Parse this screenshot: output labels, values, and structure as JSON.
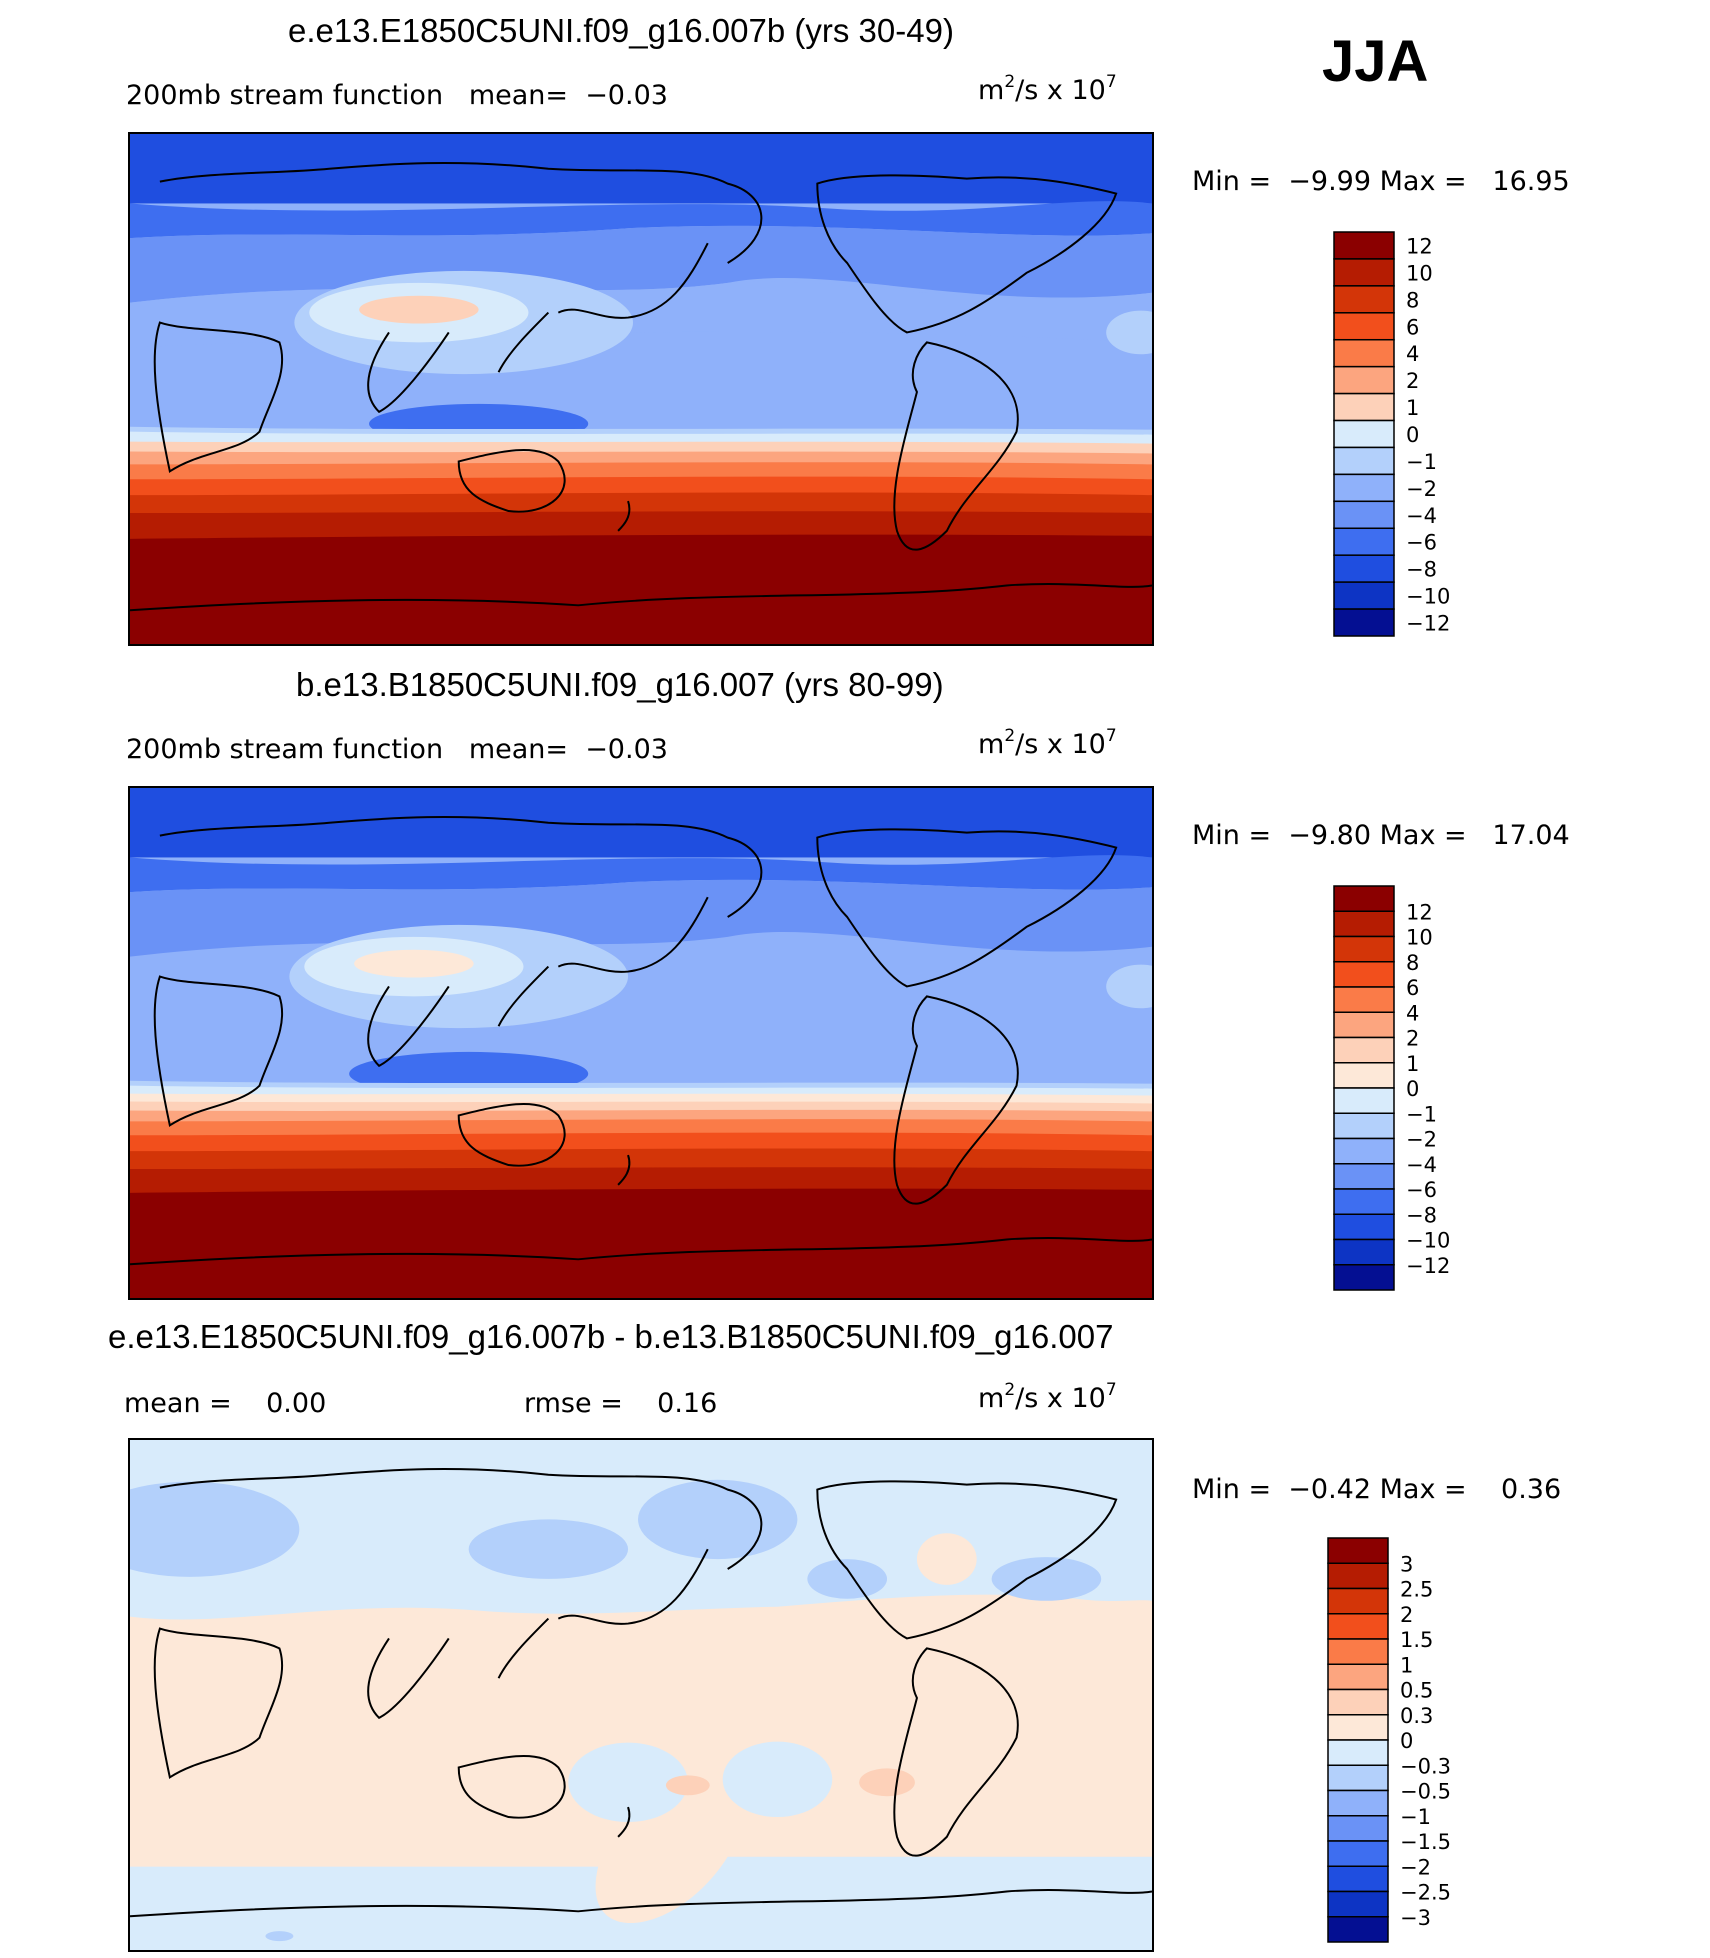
{
  "season": "JJA",
  "panels": [
    {
      "id": "top",
      "title": "e.e13.E1850C5UNI.f09_g16.007b (yrs 30-49)",
      "left_label": "200mb stream function",
      "stat1_label": "mean=",
      "stat1_value": "−0.03",
      "units_base": "m",
      "units_exp": "2",
      "units_mid": "/s x 10",
      "units_exp2": "7",
      "min_label": "Min =",
      "min_value": "−9.99",
      "max_label": "Max =",
      "max_value": "16.95",
      "colorbar": {
        "labels": [
          "12",
          "10",
          "8",
          "6",
          "4",
          "2",
          "1",
          "0",
          "−1",
          "−2",
          "−4",
          "−6",
          "−8",
          "−10",
          "−12"
        ],
        "colors": [
          "#8b0000",
          "#b51c02",
          "#d33508",
          "#f24f1c",
          "#fa7b48",
          "#fca57f",
          "#fdd1b9",
          "#d8ebfb",
          "#b3d0fb",
          "#8fb1fa",
          "#6a92f6",
          "#3e6ef0",
          "#1f4ee0",
          "#0d34c4",
          "#040f92"
        ]
      }
    },
    {
      "id": "middle",
      "title": "b.e13.B1850C5UNI.f09_g16.007 (yrs 80-99)",
      "left_label": "200mb stream function",
      "stat1_label": "mean=",
      "stat1_value": "−0.03",
      "units_base": "m",
      "units_exp": "2",
      "units_mid": "/s x 10",
      "units_exp2": "7",
      "min_label": "Min =",
      "min_value": "−9.80",
      "max_label": "Max =",
      "max_value": "17.04",
      "colorbar": {
        "labels": [
          "12",
          "10",
          "8",
          "6",
          "4",
          "2",
          "1",
          "0",
          "−1",
          "−2",
          "−4",
          "−6",
          "−8",
          "−10",
          "−12"
        ],
        "colors": [
          "#8b0000",
          "#b51c02",
          "#d33508",
          "#f24f1c",
          "#fa7b48",
          "#fca57f",
          "#fdd1b9",
          "#fde8d8",
          "#d8ebfb",
          "#b3d0fb",
          "#8fb1fa",
          "#6a92f6",
          "#3e6ef0",
          "#1f4ee0",
          "#0d34c4",
          "#040f92"
        ]
      }
    },
    {
      "id": "diff",
      "title": "e.e13.E1850C5UNI.f09_g16.007b - b.e13.B1850C5UNI.f09_g16.007",
      "left_label": "mean =",
      "left_value": "0.00",
      "stat1_label": "rmse =",
      "stat1_value": "0.16",
      "units_base": "m",
      "units_exp": "2",
      "units_mid": "/s x 10",
      "units_exp2": "7",
      "min_label": "Min =",
      "min_value": "−0.42",
      "max_label": "Max =",
      "max_value": "0.36",
      "colorbar": {
        "labels": [
          "3",
          "2.5",
          "2",
          "1.5",
          "1",
          "0.5",
          "0.3",
          "0",
          "−0.3",
          "−0.5",
          "−1",
          "−1.5",
          "−2",
          "−2.5",
          "−3"
        ],
        "colors": [
          "#8b0000",
          "#b51c02",
          "#d33508",
          "#f24f1c",
          "#fa7b48",
          "#fca57f",
          "#fdd1b9",
          "#fde8d8",
          "#d8ebfb",
          "#b3d0fb",
          "#8fb1fa",
          "#6a92f6",
          "#3e6ef0",
          "#1f4ee0",
          "#0d34c4",
          "#040f92"
        ]
      }
    }
  ]
}
